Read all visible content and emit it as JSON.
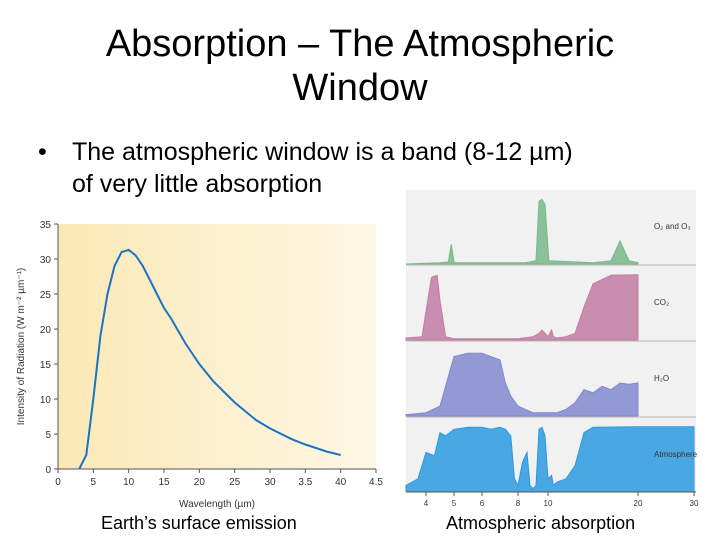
{
  "slide": {
    "title_line1": "Absorption – The Atmospheric",
    "title_line2": "Window",
    "bullet_symbol": "•",
    "bullet_line1": "The atmospheric window is a band (8-12 µm)",
    "bullet_line2": "of very little absorption",
    "caption_left": "Earth’s surface emission",
    "caption_right": "Atmospheric absorption"
  },
  "chart_data": [
    {
      "type": "line",
      "xlabel": "Wavelength (µm)",
      "ylabel": "Intensity of Radiation (W m⁻² µm⁻¹)",
      "ylim": [
        0,
        35
      ],
      "y_ticks": [
        "0",
        "5",
        "10",
        "15",
        "20",
        "25",
        "30",
        "35"
      ],
      "x_ticks": [
        "0",
        "5",
        "10",
        "15",
        "20",
        "25",
        "30",
        "3.5",
        "40",
        "4.5"
      ],
      "grid": false,
      "background_color": "#fbe8b5",
      "line_color": "#1a73c4",
      "series": [
        {
          "x": [
            3,
            4,
            5,
            6,
            7,
            8,
            9,
            10,
            11,
            12,
            13,
            14,
            15,
            16,
            18,
            20,
            22,
            25,
            28,
            30,
            33,
            35,
            38,
            40
          ],
          "y": [
            0,
            2,
            10,
            19,
            25,
            29,
            31,
            31.3,
            30.5,
            29,
            27,
            25,
            23,
            21.5,
            18,
            15,
            12.5,
            9.5,
            7,
            5.8,
            4.3,
            3.5,
            2.5,
            2
          ]
        }
      ]
    },
    {
      "type": "area",
      "xlabel": "Wavelength (µm)",
      "x_ticks": [
        "4",
        "5",
        "6",
        "8",
        "10",
        "20",
        "30"
      ],
      "ylim": [
        0,
        1
      ],
      "grid": false,
      "series": [
        {
          "name": "O₂ and O₃",
          "color": "#79b98a",
          "x": [
            3.5,
            4.5,
            4.8,
            4.9,
            5.0,
            5.1,
            5.4,
            8.5,
            9.2,
            9.4,
            9.6,
            9.8,
            10.1,
            15,
            17,
            18,
            19,
            20
          ],
          "y": [
            0,
            0.02,
            0.03,
            0.3,
            0.03,
            0.02,
            0.02,
            0.02,
            0.05,
            0.95,
            0.98,
            0.9,
            0.05,
            0.02,
            0.05,
            0.35,
            0.05,
            0.02
          ]
        },
        {
          "name": "CO₂",
          "color": "#c27da3",
          "x": [
            3.5,
            3.9,
            4.1,
            4.2,
            4.4,
            4.5,
            4.7,
            5.0,
            6,
            7,
            8,
            9,
            9.4,
            9.6,
            10,
            10.4,
            10.6,
            11,
            12,
            13,
            14,
            15,
            17,
            20
          ],
          "y": [
            0.03,
            0.05,
            0.7,
            0.95,
            0.98,
            0.6,
            0.05,
            0.02,
            0.02,
            0.02,
            0.02,
            0.05,
            0.1,
            0.15,
            0.05,
            0.15,
            0.05,
            0.03,
            0.05,
            0.1,
            0.5,
            0.85,
            0.98,
            0.99
          ]
        },
        {
          "name": "H₂O",
          "color": "#8189cf",
          "x": [
            3.5,
            4.0,
            4.5,
            4.8,
            5.0,
            5.5,
            6.0,
            6.5,
            7.0,
            7.3,
            7.6,
            8.0,
            8.5,
            9.0,
            10.0,
            11,
            12,
            13,
            14,
            15,
            16,
            17,
            18,
            19,
            20
          ],
          "y": [
            0.02,
            0.05,
            0.15,
            0.6,
            0.9,
            0.95,
            0.95,
            0.9,
            0.85,
            0.5,
            0.3,
            0.15,
            0.1,
            0.05,
            0.05,
            0.05,
            0.1,
            0.2,
            0.4,
            0.35,
            0.45,
            0.4,
            0.5,
            0.48,
            0.5
          ]
        },
        {
          "name": "Atmosphere",
          "color": "#2c9ae0",
          "x": [
            3.5,
            3.8,
            4.0,
            4.3,
            4.5,
            4.7,
            5.0,
            5.5,
            6.0,
            6.5,
            7.0,
            7.3,
            7.6,
            7.8,
            8.0,
            8.3,
            8.6,
            8.8,
            9.0,
            9.2,
            9.4,
            9.6,
            9.8,
            10.0,
            10.4,
            10.6,
            11,
            12,
            13,
            14,
            15,
            20,
            30
          ],
          "y": [
            0.1,
            0.2,
            0.6,
            0.55,
            0.9,
            0.85,
            0.95,
            0.98,
            0.98,
            0.95,
            0.98,
            0.95,
            0.85,
            0.2,
            0.1,
            0.45,
            0.6,
            0.1,
            0.05,
            0.1,
            0.95,
            0.98,
            0.85,
            0.2,
            0.25,
            0.1,
            0.15,
            0.2,
            0.4,
            0.9,
            0.98,
            0.99,
            0.99
          ]
        }
      ]
    }
  ]
}
